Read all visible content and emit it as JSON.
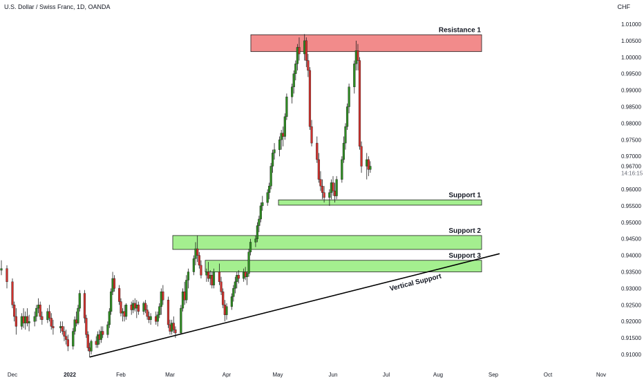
{
  "header": {
    "title": "U.S. Dollar / Swiss Franc, 1D, OANDA",
    "currency": "CHF"
  },
  "chart_data": {
    "type": "candlestick",
    "title": "U.S. Dollar / Swiss Franc, 1D, OANDA",
    "y_axis_unit": "CHF",
    "ylim": [
      0.9075,
      1.012
    ],
    "y_ticks": [
      "1.01000",
      "1.00500",
      "1.00000",
      "0.99500",
      "0.99000",
      "0.98500",
      "0.98000",
      "0.97500",
      "0.97000",
      "0.96500",
      "0.96000",
      "0.95500",
      "0.95000",
      "0.94500",
      "0.94000",
      "0.93500",
      "0.93000",
      "0.92500",
      "0.92000",
      "0.91500",
      "0.91000"
    ],
    "x_ticks": [
      "Dec",
      "2022",
      "Feb",
      "Mar",
      "Apr",
      "May",
      "Jun",
      "Jul",
      "Aug",
      "Sep",
      "Oct",
      "Nov"
    ],
    "last_price": "0.96700",
    "countdown": "14:16:15",
    "up_color": "#2e8b22",
    "down_color": "#d0312d",
    "grid": false,
    "zones": [
      {
        "label": "Resistance 1",
        "low": 1.0017,
        "high": 1.0068,
        "color": "#f28b8b"
      },
      {
        "label": "Support 1",
        "low": 0.9552,
        "high": 0.9568,
        "color": "#a4ef8f"
      },
      {
        "label": "Support 2",
        "low": 0.9418,
        "high": 0.946,
        "color": "#a4ef8f"
      },
      {
        "label": "Support 3",
        "low": 0.935,
        "high": 0.9385,
        "color": "#a4ef8f"
      }
    ],
    "trendline": {
      "label": "Vertical Support",
      "start": [
        "2022-01-13",
        0.9092
      ],
      "end": [
        "2022-09-01",
        0.9405
      ]
    },
    "candles": [
      [
        "Nov-29",
        0.9355,
        0.9385,
        0.934,
        0.936
      ],
      [
        "Nov-30",
        0.936,
        0.937,
        0.93,
        0.932
      ],
      [
        "Dec-01",
        0.932,
        0.933,
        0.924,
        0.925
      ],
      [
        "Dec-02",
        0.925,
        0.926,
        0.92,
        0.9215
      ],
      [
        "Dec-03",
        0.9215,
        0.924,
        0.916,
        0.9185
      ],
      [
        "Dec-06",
        0.9185,
        0.9225,
        0.9175,
        0.9215
      ],
      [
        "Dec-07",
        0.9215,
        0.924,
        0.918,
        0.9195
      ],
      [
        "Dec-08",
        0.9195,
        0.923,
        0.9175,
        0.9215
      ],
      [
        "Dec-09",
        0.9215,
        0.924,
        0.9185,
        0.9195
      ],
      [
        "Dec-10",
        0.9195,
        0.922,
        0.917,
        0.92
      ],
      [
        "Dec-13",
        0.92,
        0.923,
        0.9185,
        0.9215
      ],
      [
        "Dec-14",
        0.9215,
        0.925,
        0.92,
        0.924
      ],
      [
        "Dec-15",
        0.924,
        0.927,
        0.9225,
        0.925
      ],
      [
        "Dec-16",
        0.925,
        0.926,
        0.9205,
        0.9215
      ],
      [
        "Dec-17",
        0.9215,
        0.923,
        0.919,
        0.9205
      ],
      [
        "Dec-20",
        0.9205,
        0.924,
        0.9195,
        0.923
      ],
      [
        "Dec-21",
        0.923,
        0.925,
        0.92,
        0.921
      ],
      [
        "Dec-22",
        0.921,
        0.9225,
        0.9175,
        0.9185
      ],
      [
        "Dec-23",
        0.9185,
        0.9205,
        0.916,
        0.918
      ],
      [
        "Dec-27",
        0.918,
        0.92,
        0.9165,
        0.9185
      ],
      [
        "Dec-28",
        0.9185,
        0.92,
        0.916,
        0.917
      ],
      [
        "Dec-29",
        0.917,
        0.9185,
        0.914,
        0.9155
      ],
      [
        "Dec-30",
        0.9155,
        0.9175,
        0.913,
        0.9145
      ],
      [
        "Dec-31",
        0.9145,
        0.916,
        0.911,
        0.9125
      ],
      [
        "Jan-03",
        0.9125,
        0.918,
        0.9115,
        0.917
      ],
      [
        "Jan-04",
        0.917,
        0.9215,
        0.916,
        0.9205
      ],
      [
        "Jan-05",
        0.9205,
        0.923,
        0.9185,
        0.9195
      ],
      [
        "Jan-06",
        0.9195,
        0.925,
        0.919,
        0.924
      ],
      [
        "Jan-07",
        0.924,
        0.9295,
        0.923,
        0.9285
      ],
      [
        "Jan-10",
        0.9285,
        0.9295,
        0.9195,
        0.921
      ],
      [
        "Jan-11",
        0.921,
        0.922,
        0.915,
        0.916
      ],
      [
        "Jan-12",
        0.916,
        0.917,
        0.911,
        0.912
      ],
      [
        "Jan-13",
        0.912,
        0.9135,
        0.9092,
        0.911
      ],
      [
        "Jan-14",
        0.911,
        0.9145,
        0.91,
        0.914
      ],
      [
        "Jan-17",
        0.914,
        0.9155,
        0.912,
        0.913
      ],
      [
        "Jan-18",
        0.913,
        0.917,
        0.912,
        0.916
      ],
      [
        "Jan-19",
        0.916,
        0.9175,
        0.913,
        0.9145
      ],
      [
        "Jan-20",
        0.9145,
        0.9185,
        0.9135,
        0.917
      ],
      [
        "Jan-21",
        0.917,
        0.9185,
        0.915,
        0.916
      ],
      [
        "Jan-24",
        0.916,
        0.92,
        0.915,
        0.919
      ],
      [
        "Jan-25",
        0.919,
        0.924,
        0.918,
        0.923
      ],
      [
        "Jan-26",
        0.923,
        0.93,
        0.922,
        0.929
      ],
      [
        "Jan-27",
        0.929,
        0.935,
        0.928,
        0.933
      ],
      [
        "Jan-28",
        0.933,
        0.934,
        0.929,
        0.93
      ],
      [
        "Jan-31",
        0.93,
        0.931,
        0.925,
        0.926
      ],
      [
        "Feb-01",
        0.926,
        0.927,
        0.9215,
        0.9225
      ],
      [
        "Feb-02",
        0.9225,
        0.924,
        0.92,
        0.923
      ],
      [
        "Feb-03",
        0.923,
        0.925,
        0.92,
        0.9215
      ],
      [
        "Feb-04",
        0.9215,
        0.9255,
        0.9205,
        0.925
      ],
      [
        "Feb-07",
        0.925,
        0.926,
        0.922,
        0.9235
      ],
      [
        "Feb-08",
        0.9235,
        0.9265,
        0.9225,
        0.9255
      ],
      [
        "Feb-09",
        0.9255,
        0.927,
        0.923,
        0.924
      ],
      [
        "Feb-10",
        0.924,
        0.9265,
        0.921,
        0.925
      ],
      [
        "Feb-11",
        0.925,
        0.926,
        0.922,
        0.923
      ],
      [
        "Feb-14",
        0.923,
        0.926,
        0.922,
        0.9255
      ],
      [
        "Feb-15",
        0.9255,
        0.9265,
        0.9225,
        0.9235
      ],
      [
        "Feb-16",
        0.9235,
        0.925,
        0.9205,
        0.9215
      ],
      [
        "Feb-17",
        0.9215,
        0.923,
        0.9195,
        0.9205
      ],
      [
        "Feb-18",
        0.9205,
        0.9225,
        0.919,
        0.9215
      ],
      [
        "Feb-21",
        0.9215,
        0.923,
        0.919,
        0.92
      ],
      [
        "Feb-22",
        0.92,
        0.923,
        0.9185,
        0.922
      ],
      [
        "Feb-23",
        0.922,
        0.9255,
        0.921,
        0.9245
      ],
      [
        "Feb-24",
        0.9245,
        0.93,
        0.922,
        0.929
      ],
      [
        "Feb-25",
        0.929,
        0.931,
        0.925,
        0.9265
      ],
      [
        "Feb-28",
        0.9265,
        0.9275,
        0.918,
        0.919
      ],
      [
        "Mar-01",
        0.919,
        0.9205,
        0.916,
        0.917
      ],
      [
        "Mar-02",
        0.917,
        0.9205,
        0.916,
        0.9195
      ],
      [
        "Mar-03",
        0.9195,
        0.9215,
        0.9165,
        0.9175
      ],
      [
        "Mar-04",
        0.9175,
        0.9185,
        0.915,
        0.9165
      ],
      [
        "Mar-07",
        0.9165,
        0.925,
        0.916,
        0.924
      ],
      [
        "Mar-08",
        0.924,
        0.93,
        0.923,
        0.929
      ],
      [
        "Mar-09",
        0.929,
        0.932,
        0.925,
        0.9265
      ],
      [
        "Mar-10",
        0.9265,
        0.934,
        0.9255,
        0.9325
      ],
      [
        "Mar-11",
        0.9325,
        0.936,
        0.93,
        0.935
      ],
      [
        "Mar-14",
        0.935,
        0.94,
        0.934,
        0.939
      ],
      [
        "Mar-15",
        0.939,
        0.944,
        0.937,
        0.942
      ],
      [
        "Mar-16",
        0.942,
        0.946,
        0.938,
        0.94
      ],
      [
        "Mar-17",
        0.94,
        0.941,
        0.936,
        0.937
      ],
      [
        "Mar-18",
        0.937,
        0.9385,
        0.933,
        0.934
      ],
      [
        "Mar-21",
        0.934,
        0.936,
        0.932,
        0.935
      ],
      [
        "Mar-22",
        0.935,
        0.938,
        0.932,
        0.933
      ],
      [
        "Mar-23",
        0.933,
        0.9355,
        0.931,
        0.934
      ],
      [
        "Mar-24",
        0.934,
        0.935,
        0.93,
        0.931
      ],
      [
        "Mar-25",
        0.931,
        0.936,
        0.93,
        0.935
      ],
      [
        "Mar-28",
        0.935,
        0.9375,
        0.931,
        0.932
      ],
      [
        "Mar-29",
        0.932,
        0.9335,
        0.928,
        0.929
      ],
      [
        "Mar-30",
        0.929,
        0.93,
        0.924,
        0.925
      ],
      [
        "Mar-31",
        0.925,
        0.9265,
        0.92,
        0.922
      ],
      [
        "Apr-01",
        0.922,
        0.9255,
        0.9205,
        0.9245
      ],
      [
        "Apr-04",
        0.9245,
        0.9285,
        0.9235,
        0.9275
      ],
      [
        "Apr-05",
        0.9275,
        0.931,
        0.926,
        0.93
      ],
      [
        "Apr-06",
        0.93,
        0.9335,
        0.9285,
        0.932
      ],
      [
        "Apr-07",
        0.932,
        0.935,
        0.93,
        0.934
      ],
      [
        "Apr-08",
        0.934,
        0.9355,
        0.9315,
        0.933
      ],
      [
        "Apr-11",
        0.933,
        0.936,
        0.932,
        0.935
      ],
      [
        "Apr-12",
        0.935,
        0.9365,
        0.9325,
        0.9335
      ],
      [
        "Apr-13",
        0.9335,
        0.935,
        0.931,
        0.9345
      ],
      [
        "Apr-14",
        0.9345,
        0.942,
        0.9335,
        0.941
      ],
      [
        "Apr-15",
        0.941,
        0.945,
        0.94,
        0.944
      ],
      [
        "Apr-18",
        0.944,
        0.946,
        0.9425,
        0.945
      ],
      [
        "Apr-19",
        0.945,
        0.95,
        0.944,
        0.949
      ],
      [
        "Apr-20",
        0.949,
        0.952,
        0.947,
        0.951
      ],
      [
        "Apr-21",
        0.951,
        0.956,
        0.95,
        0.955
      ],
      [
        "Apr-22",
        0.955,
        0.958,
        0.9535,
        0.956
      ],
      [
        "Apr-25",
        0.956,
        0.96,
        0.955,
        0.959
      ],
      [
        "Apr-26",
        0.959,
        0.962,
        0.957,
        0.961
      ],
      [
        "Apr-27",
        0.961,
        0.968,
        0.96,
        0.967
      ],
      [
        "Apr-28",
        0.967,
        0.972,
        0.965,
        0.971
      ],
      [
        "Apr-29",
        0.971,
        0.974,
        0.969,
        0.972
      ],
      [
        "May-02",
        0.972,
        0.976,
        0.97,
        0.975
      ],
      [
        "May-03",
        0.975,
        0.978,
        0.972,
        0.977
      ],
      [
        "May-04",
        0.977,
        0.979,
        0.973,
        0.976
      ],
      [
        "May-05",
        0.976,
        0.983,
        0.975,
        0.982
      ],
      [
        "May-06",
        0.982,
        0.989,
        0.981,
        0.988
      ],
      [
        "May-09",
        0.988,
        0.992,
        0.986,
        0.991
      ],
      [
        "May-10",
        0.991,
        0.996,
        0.989,
        0.995
      ],
      [
        "May-11",
        0.995,
        0.999,
        0.993,
        0.998
      ],
      [
        "May-12",
        0.998,
        1.004,
        0.996,
        1.003
      ],
      [
        "May-13",
        1.003,
        1.006,
        0.999,
        1.001
      ],
      [
        "May-16",
        1.001,
        1.007,
        0.999,
        1.005
      ],
      [
        "May-17",
        1.005,
        1.006,
        0.997,
        0.999
      ],
      [
        "May-18",
        0.999,
        1.001,
        0.994,
        0.996
      ],
      [
        "May-19",
        0.996,
        0.997,
        0.978,
        0.979
      ],
      [
        "May-20",
        0.979,
        0.981,
        0.973,
        0.974
      ],
      [
        "May-23",
        0.974,
        0.976,
        0.968,
        0.969
      ],
      [
        "May-24",
        0.969,
        0.971,
        0.962,
        0.963
      ],
      [
        "May-25",
        0.963,
        0.9655,
        0.9595,
        0.961
      ],
      [
        "May-26",
        0.961,
        0.963,
        0.957,
        0.959
      ],
      [
        "May-27",
        0.959,
        0.961,
        0.956,
        0.9575
      ],
      [
        "May-30",
        0.9575,
        0.96,
        0.955,
        0.959
      ],
      [
        "May-31",
        0.959,
        0.963,
        0.957,
        0.962
      ],
      [
        "Jun-01",
        0.962,
        0.964,
        0.958,
        0.9595
      ],
      [
        "Jun-02",
        0.9595,
        0.962,
        0.956,
        0.958
      ],
      [
        "Jun-03",
        0.958,
        0.964,
        0.957,
        0.963
      ],
      [
        "Jun-06",
        0.963,
        0.97,
        0.962,
        0.969
      ],
      [
        "Jun-07",
        0.969,
        0.976,
        0.968,
        0.974
      ],
      [
        "Jun-08",
        0.974,
        0.98,
        0.972,
        0.979
      ],
      [
        "Jun-09",
        0.979,
        0.986,
        0.978,
        0.985
      ],
      [
        "Jun-10",
        0.985,
        0.992,
        0.983,
        0.991
      ],
      [
        "Jun-13",
        0.991,
        0.999,
        0.989,
        0.998
      ],
      [
        "Jun-14",
        0.998,
        1.005,
        0.996,
        1.002
      ],
      [
        "Jun-15",
        1.002,
        1.004,
        0.996,
        0.999
      ],
      [
        "Jun-16",
        0.999,
        1.0,
        0.972,
        0.973
      ],
      [
        "Jun-17",
        0.973,
        0.9745,
        0.965,
        0.967
      ],
      [
        "Jun-20",
        0.967,
        0.971,
        0.963,
        0.969
      ],
      [
        "Jun-21",
        0.969,
        0.97,
        0.964,
        0.966
      ],
      [
        "Jun-22",
        0.966,
        0.9685,
        0.965,
        0.967
      ]
    ]
  }
}
